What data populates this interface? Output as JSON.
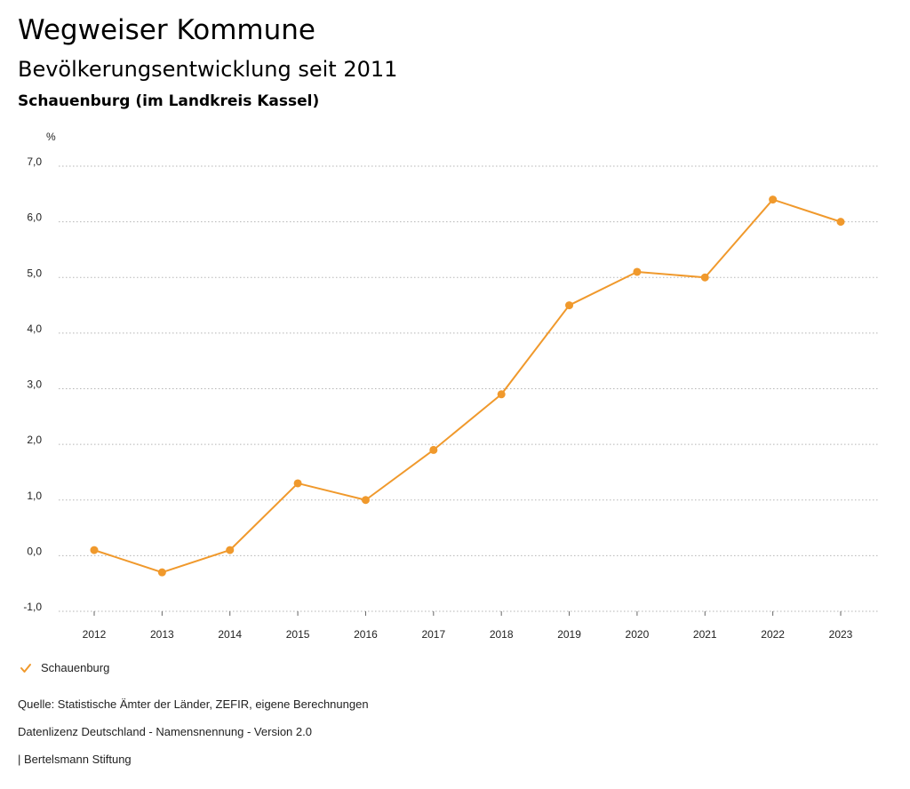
{
  "header": {
    "title": "Wegweiser Kommune",
    "subtitle": "Bevölkerungsentwicklung seit 2011",
    "region": "Schauenburg (im Landkreis Kassel)"
  },
  "colors": {
    "series": "#f0992c",
    "grid": "#b5b5b5"
  },
  "legend": {
    "icon": "check-icon",
    "label": "Schauenburg"
  },
  "footer": {
    "source": "Quelle: Statistische Ämter der Länder, ZEFIR, eigene Berechnungen",
    "license": "Datenlizenz Deutschland - Namensnennung - Version 2.0",
    "publisher": "| Bertelsmann Stiftung"
  },
  "chart_data": {
    "type": "line",
    "title": "Bevölkerungsentwicklung seit 2011",
    "ylabel": "%",
    "xlabel": "",
    "ylim": [
      -1.0,
      7.0
    ],
    "yticks": [
      -1.0,
      0.0,
      1.0,
      2.0,
      3.0,
      4.0,
      5.0,
      6.0,
      7.0
    ],
    "ytick_labels": [
      "-1,0",
      "0,0",
      "1,0",
      "2,0",
      "3,0",
      "4,0",
      "5,0",
      "6,0",
      "7,0"
    ],
    "grid": true,
    "legend_position": "bottom-left",
    "categories": [
      "2012",
      "2013",
      "2014",
      "2015",
      "2016",
      "2017",
      "2018",
      "2019",
      "2020",
      "2021",
      "2022",
      "2023"
    ],
    "series": [
      {
        "name": "Schauenburg",
        "values": [
          0.1,
          -0.3,
          0.1,
          1.3,
          1.0,
          1.9,
          2.9,
          4.5,
          5.1,
          5.0,
          6.4,
          6.0
        ]
      }
    ]
  }
}
